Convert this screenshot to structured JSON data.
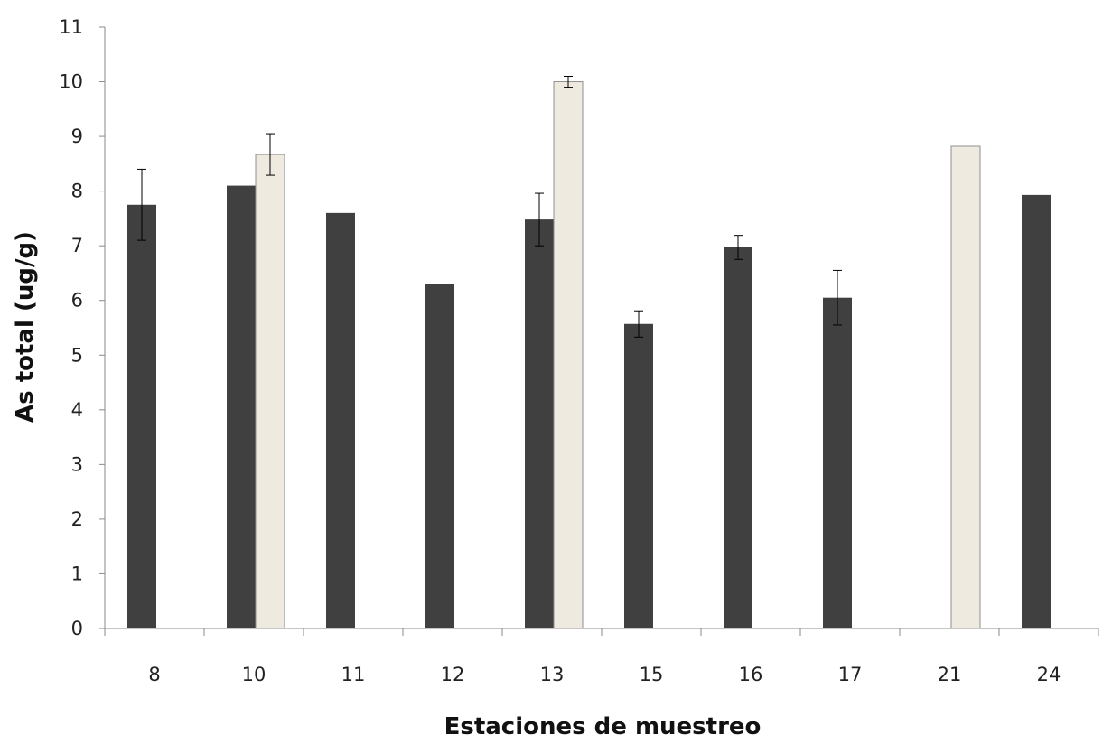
{
  "chart_data": {
    "type": "bar",
    "categories": [
      "8",
      "10",
      "11",
      "12",
      "13",
      "15",
      "16",
      "17",
      "21",
      "24"
    ],
    "series": [
      {
        "color": "#404040",
        "values": [
          7.75,
          8.1,
          7.6,
          6.3,
          7.48,
          5.57,
          6.97,
          6.05,
          null,
          7.93
        ],
        "errors": [
          0.65,
          null,
          null,
          null,
          0.48,
          0.24,
          0.22,
          0.5,
          null,
          null
        ]
      },
      {
        "color": "#eeeae0",
        "values": [
          null,
          8.67,
          null,
          null,
          10.0,
          null,
          null,
          null,
          8.82,
          null
        ],
        "errors": [
          null,
          0.38,
          null,
          null,
          0.1,
          null,
          null,
          null,
          null,
          null
        ]
      }
    ],
    "xlabel": "Estaciones de muestreo",
    "ylabel": "As total (ug/g)",
    "ylim": [
      0,
      11
    ],
    "yticks": [
      "0",
      "1",
      "2",
      "3",
      "4",
      "5",
      "6",
      "7",
      "8",
      "9",
      "10",
      "11"
    ],
    "grid": false,
    "legend": "none"
  }
}
